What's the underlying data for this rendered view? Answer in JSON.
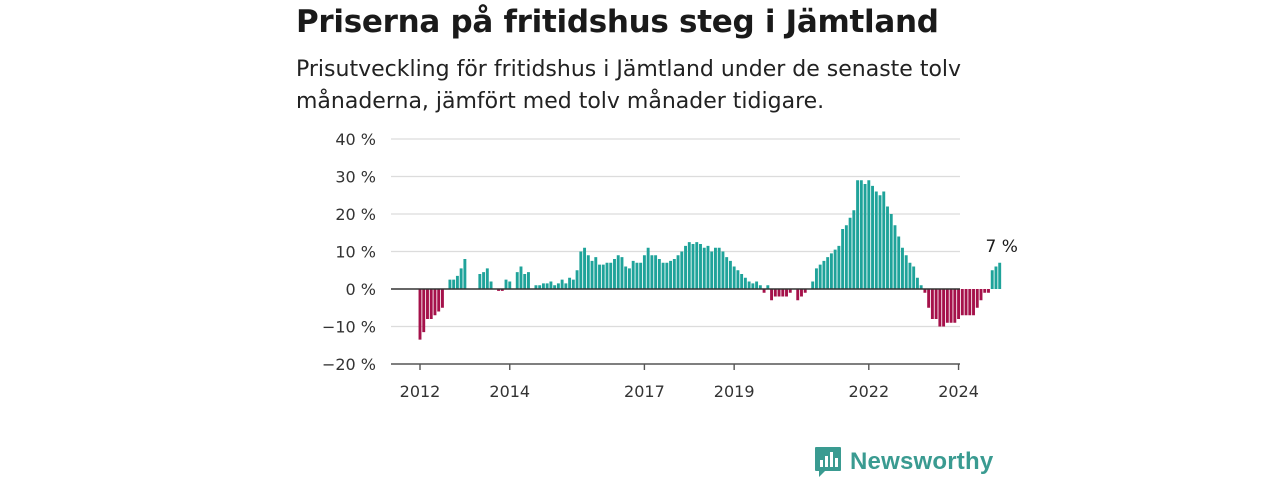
{
  "header": {
    "title": "Priserna på fritidshus steg i Jämtland",
    "subtitle": "Prisutveckling för fritidshus i Jämtland under de senaste tolv månaderna, jämfört med tolv månader tidigare."
  },
  "brand": {
    "name": "Newsworthy",
    "icon": "newsworthy-logo-icon",
    "color": "#3a9b91"
  },
  "chart_data": {
    "type": "bar",
    "title": "Priserna på fritidshus steg i Jämtland",
    "subtitle": "Prisutveckling för fritidshus i Jämtland under de senaste tolv månaderna, jämfört med tolv månader tidigare.",
    "xlabel": "",
    "ylabel": "",
    "ylim": [
      -20,
      40
    ],
    "yticks": [
      -20,
      -10,
      0,
      10,
      20,
      30,
      40
    ],
    "ytick_labels": [
      "−20 %",
      "−10 %",
      "0 %",
      "10 %",
      "20 %",
      "30 %",
      "40 %"
    ],
    "xtick_labels": [
      "2012",
      "2014",
      "2017",
      "2019",
      "2022",
      "2024"
    ],
    "x_start": "2012-01",
    "frequency": "monthly",
    "positive_color": "#1fa39a",
    "negative_color": "#a5114a",
    "grid": true,
    "annotation": "7 %",
    "values": [
      -13.5,
      -11.5,
      -8,
      -8,
      -7,
      -6,
      -5,
      0,
      2.5,
      2.5,
      3.5,
      5.5,
      8,
      0,
      0,
      0,
      4,
      4.5,
      5.5,
      2,
      0,
      -0.5,
      -0.5,
      2.5,
      2,
      0,
      4.5,
      6,
      4,
      4.5,
      0,
      1,
      1,
      1.5,
      1.5,
      2,
      1,
      1.5,
      2.5,
      1.5,
      3,
      2.5,
      5,
      10,
      11,
      9,
      7.5,
      8.5,
      6.5,
      6.5,
      7,
      7,
      8,
      9,
      8.5,
      6,
      5.5,
      7.5,
      7,
      7,
      9,
      11,
      9,
      9,
      8,
      7,
      7,
      7.5,
      8,
      9,
      10,
      11.5,
      12.5,
      12,
      12.5,
      12,
      11,
      11.5,
      10,
      11,
      11,
      10,
      8.5,
      7.5,
      6,
      5,
      4,
      3,
      2,
      1.5,
      2,
      1,
      -1,
      1,
      -3,
      -2,
      -2,
      -2,
      -2,
      -1,
      0,
      -3,
      -2,
      -1,
      0,
      2,
      5.5,
      6.5,
      7.5,
      8.5,
      9.5,
      10.5,
      11.5,
      16,
      17,
      19,
      21,
      29,
      29,
      28,
      29,
      27.5,
      26,
      25,
      26,
      22,
      20,
      17,
      14,
      11,
      9,
      7,
      6,
      3,
      1,
      -1,
      -5,
      -8,
      -8,
      -10,
      -10,
      -9,
      -9,
      -9,
      -8,
      -7,
      -7,
      -7,
      -7,
      -5,
      -3,
      -1,
      -1,
      5,
      6,
      7
    ]
  }
}
